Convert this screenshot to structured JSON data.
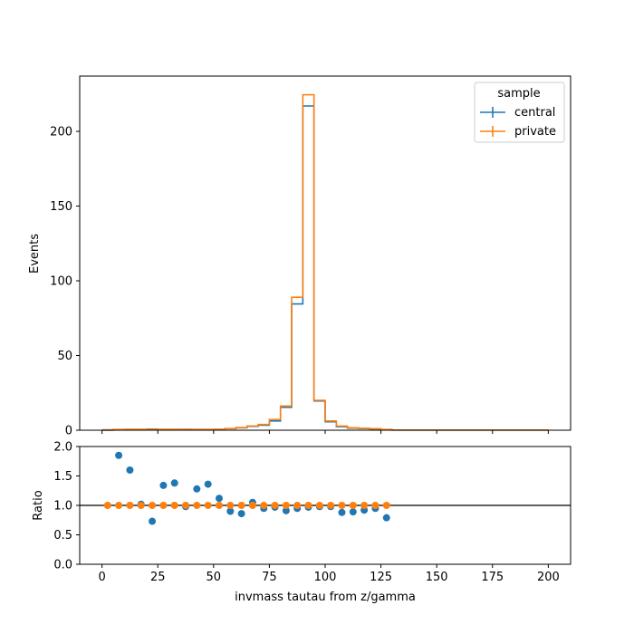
{
  "chart_data": [
    {
      "type": "step",
      "panel": "main",
      "title": "",
      "ylabel": "Events",
      "xlim": [
        -10,
        210
      ],
      "ylim": [
        0,
        237
      ],
      "yticks": [
        0,
        50,
        100,
        150,
        200
      ],
      "ytick_labels": [
        "0",
        "50",
        "100",
        "150",
        "200"
      ],
      "bin_edges": [
        0,
        5,
        10,
        15,
        20,
        25,
        30,
        35,
        40,
        45,
        50,
        55,
        60,
        65,
        70,
        75,
        80,
        85,
        90,
        95,
        100,
        105,
        110,
        115,
        120,
        125,
        130,
        135,
        140,
        145,
        150,
        155,
        160,
        165,
        170,
        175,
        180,
        185,
        190,
        195,
        200
      ],
      "legend": {
        "title": "sample",
        "position": "upper right"
      },
      "series": [
        {
          "name": "central",
          "color": "#1f77b4",
          "values": [
            0,
            0.3,
            0.5,
            0.5,
            0.7,
            0.5,
            0.5,
            0.6,
            0.5,
            0.5,
            0.6,
            1.0,
            1.6,
            2.6,
            3.4,
            6.2,
            15.3,
            84.5,
            217.0,
            19.6,
            5.6,
            2.4,
            1.4,
            1.2,
            0.9,
            0.3,
            0.1,
            0.1,
            0.1,
            0.1,
            0.1,
            0.1,
            0.1,
            0.1,
            0.1,
            0.1,
            0.1,
            0.1,
            0.1,
            0.1
          ]
        },
        {
          "name": "private",
          "color": "#ff7f0e",
          "values": [
            0.3,
            0.5,
            0.6,
            0.6,
            0.5,
            0.6,
            0.6,
            0.5,
            0.5,
            0.5,
            0.6,
            1.1,
            1.8,
            2.8,
            3.8,
            7.2,
            16.2,
            89.0,
            224.5,
            20.0,
            6.2,
            2.8,
            1.6,
            1.3,
            1.0,
            0.5,
            0.1,
            0.1,
            0.1,
            0.1,
            0.1,
            0.1,
            0.1,
            0.1,
            0.1,
            0.1,
            0.1,
            0.1,
            0.1,
            0.1
          ]
        }
      ]
    },
    {
      "type": "scatter",
      "panel": "ratio",
      "xlabel": "invmass tautau from z/gamma",
      "ylabel": "Ratio",
      "xlim": [
        -10,
        210
      ],
      "ylim": [
        0.0,
        2.0
      ],
      "xticks": [
        0,
        25,
        50,
        75,
        100,
        125,
        150,
        175,
        200
      ],
      "xtick_labels": [
        "0",
        "25",
        "50",
        "75",
        "100",
        "125",
        "150",
        "175",
        "200"
      ],
      "yticks": [
        0.0,
        0.5,
        1.0,
        1.5,
        2.0
      ],
      "ytick_labels": [
        "0.0",
        "0.5",
        "1.0",
        "1.5",
        "2.0"
      ],
      "reference_line": 1.0,
      "series": [
        {
          "name": "central",
          "color": "#1f77b4",
          "x": [
            7.5,
            12.5,
            17.5,
            22.5,
            27.5,
            32.5,
            37.5,
            42.5,
            47.5,
            52.5,
            57.5,
            62.5,
            67.5,
            72.5,
            77.5,
            82.5,
            87.5,
            92.5,
            97.5,
            102.5,
            107.5,
            112.5,
            117.5,
            122.5,
            127.5
          ],
          "y": [
            1.85,
            1.6,
            1.02,
            0.73,
            1.34,
            1.38,
            0.98,
            1.28,
            1.36,
            1.12,
            0.9,
            0.86,
            1.05,
            0.95,
            0.97,
            0.91,
            0.95,
            0.97,
            0.98,
            0.98,
            0.88,
            0.89,
            0.92,
            0.95,
            0.79
          ]
        },
        {
          "name": "private",
          "color": "#ff7f0e",
          "x": [
            2.5,
            7.5,
            12.5,
            17.5,
            22.5,
            27.5,
            32.5,
            37.5,
            42.5,
            47.5,
            52.5,
            57.5,
            62.5,
            67.5,
            72.5,
            77.5,
            82.5,
            87.5,
            92.5,
            97.5,
            102.5,
            107.5,
            112.5,
            117.5,
            122.5,
            127.5
          ],
          "y": [
            1.0,
            1.0,
            1.0,
            1.0,
            1.0,
            1.0,
            1.0,
            1.0,
            1.0,
            1.0,
            1.0,
            1.0,
            1.0,
            1.0,
            1.0,
            1.0,
            1.0,
            1.0,
            1.0,
            1.0,
            1.0,
            1.0,
            1.0,
            1.0,
            1.0,
            1.0
          ]
        }
      ]
    }
  ]
}
